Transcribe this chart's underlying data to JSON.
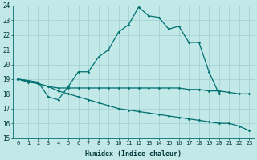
{
  "xlabel": "Humidex (Indice chaleur)",
  "background_color": "#c2e8e8",
  "grid_color": "#9ecece",
  "line_color": "#007070",
  "xlim_min": -0.5,
  "xlim_max": 23.5,
  "ylim_min": 15,
  "ylim_max": 24,
  "yticks": [
    15,
    16,
    17,
    18,
    19,
    20,
    21,
    22,
    23,
    24
  ],
  "xticks": [
    0,
    1,
    2,
    3,
    4,
    5,
    6,
    7,
    8,
    9,
    10,
    11,
    12,
    13,
    14,
    15,
    16,
    17,
    18,
    19,
    20,
    21,
    22,
    23
  ],
  "curve_x": [
    0,
    1,
    2,
    3,
    4,
    5,
    6,
    7,
    8,
    9,
    10,
    11,
    12,
    13,
    14,
    15,
    16,
    17,
    18,
    19,
    20
  ],
  "curve_y": [
    19.0,
    18.9,
    18.8,
    17.8,
    17.6,
    18.5,
    19.5,
    19.5,
    20.5,
    21.0,
    22.2,
    22.7,
    23.9,
    23.3,
    23.2,
    22.4,
    22.6,
    21.5,
    21.5,
    19.5,
    18.0
  ],
  "flat_x": [
    0,
    1,
    2,
    3,
    4,
    5,
    6,
    7,
    8,
    9,
    10,
    11,
    12,
    13,
    14,
    15,
    16,
    17,
    18,
    19,
    20,
    21,
    22,
    23
  ],
  "flat_y": [
    19.0,
    18.8,
    18.7,
    18.5,
    18.4,
    18.4,
    18.4,
    18.4,
    18.4,
    18.4,
    18.4,
    18.4,
    18.4,
    18.4,
    18.4,
    18.4,
    18.4,
    18.3,
    18.3,
    18.2,
    18.2,
    18.1,
    18.0,
    18.0
  ],
  "desc_x": [
    0,
    1,
    2,
    3,
    4,
    5,
    6,
    7,
    8,
    9,
    10,
    11,
    12,
    13,
    14,
    15,
    16,
    17,
    18,
    19,
    20,
    21,
    22,
    23
  ],
  "desc_y": [
    19.0,
    18.9,
    18.7,
    18.5,
    18.2,
    18.0,
    17.8,
    17.6,
    17.4,
    17.2,
    17.0,
    16.9,
    16.8,
    16.7,
    16.6,
    16.5,
    16.4,
    16.3,
    16.2,
    16.1,
    16.0,
    16.0,
    15.8,
    15.5
  ]
}
